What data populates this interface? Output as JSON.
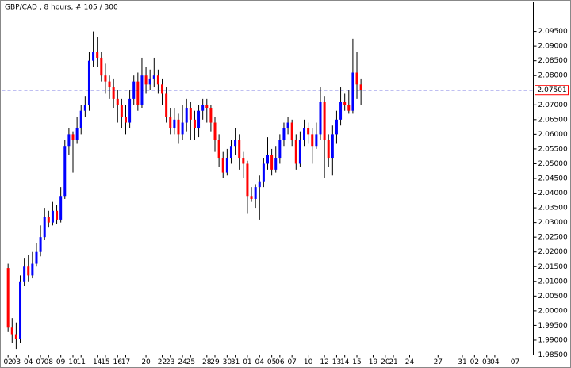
{
  "chart_data": {
    "type": "candlestick",
    "title": "GBP/CAD , 8 hours, # 105 / 300",
    "bull_color": "#0000ff",
    "bear_color": "#ff0000",
    "current_price": 2.07501,
    "current_price_color": "#0000cc",
    "xlim": [
      -1.5,
      129.5
    ],
    "xticks": [
      {
        "value": 0,
        "label": "02"
      },
      {
        "value": 2,
        "label": "03"
      },
      {
        "value": 5,
        "label": "04"
      },
      {
        "value": 8,
        "label": "07"
      },
      {
        "value": 10,
        "label": "08"
      },
      {
        "value": 13,
        "label": "09"
      },
      {
        "value": 16,
        "label": "10"
      },
      {
        "value": 18,
        "label": "11"
      },
      {
        "value": 22,
        "label": "14"
      },
      {
        "value": 24,
        "label": "15"
      },
      {
        "value": 27,
        "label": "16"
      },
      {
        "value": 29,
        "label": "17"
      },
      {
        "value": 34,
        "label": "20"
      },
      {
        "value": 38,
        "label": "22"
      },
      {
        "value": 40,
        "label": "23"
      },
      {
        "value": 43,
        "label": "24"
      },
      {
        "value": 45,
        "label": "25"
      },
      {
        "value": 49,
        "label": "28"
      },
      {
        "value": 51,
        "label": "29"
      },
      {
        "value": 54,
        "label": "30"
      },
      {
        "value": 56,
        "label": "31"
      },
      {
        "value": 59,
        "label": "01"
      },
      {
        "value": 62,
        "label": "04"
      },
      {
        "value": 65,
        "label": "05"
      },
      {
        "value": 67,
        "label": "06"
      },
      {
        "value": 70,
        "label": "07"
      },
      {
        "value": 74,
        "label": "10"
      },
      {
        "value": 78,
        "label": "12"
      },
      {
        "value": 81,
        "label": "13"
      },
      {
        "value": 83,
        "label": "14"
      },
      {
        "value": 86,
        "label": "15"
      },
      {
        "value": 90,
        "label": "19"
      },
      {
        "value": 93,
        "label": "20"
      },
      {
        "value": 95,
        "label": "21"
      },
      {
        "value": 99,
        "label": "24"
      },
      {
        "value": 106,
        "label": "27"
      },
      {
        "value": 112,
        "label": "31"
      },
      {
        "value": 115,
        "label": "02"
      },
      {
        "value": 118,
        "label": "03"
      },
      {
        "value": 120,
        "label": "04"
      },
      {
        "value": 125,
        "label": "07"
      }
    ],
    "ylim": [
      1.985,
      2.105
    ],
    "yticks": [
      {
        "value": 1.985,
        "label": "1.98500"
      },
      {
        "value": 1.99,
        "label": "1.99000"
      },
      {
        "value": 1.995,
        "label": "1.99500"
      },
      {
        "value": 2.0,
        "label": "2.00000"
      },
      {
        "value": 2.005,
        "label": "2.00500"
      },
      {
        "value": 2.01,
        "label": "2.01000"
      },
      {
        "value": 2.015,
        "label": "2.01500"
      },
      {
        "value": 2.02,
        "label": "2.02000"
      },
      {
        "value": 2.025,
        "label": "2.02500"
      },
      {
        "value": 2.03,
        "label": "2.03000"
      },
      {
        "value": 2.035,
        "label": "2.03500"
      },
      {
        "value": 2.04,
        "label": "2.04000"
      },
      {
        "value": 2.045,
        "label": "2.04500"
      },
      {
        "value": 2.05,
        "label": "2.05000"
      },
      {
        "value": 2.055,
        "label": "2.05500"
      },
      {
        "value": 2.06,
        "label": "2.06000"
      },
      {
        "value": 2.065,
        "label": "2.06500"
      },
      {
        "value": 2.07,
        "label": "2.07000"
      },
      {
        "value": 2.08,
        "label": "2.08000"
      },
      {
        "value": 2.085,
        "label": "2.08500"
      },
      {
        "value": 2.09,
        "label": "2.09000"
      },
      {
        "value": 2.095,
        "label": "2.09500"
      }
    ],
    "open": [
      2.0145,
      1.9945,
      1.992,
      1.9905,
      2.01,
      2.015,
      2.012,
      2.016,
      2.02,
      2.025,
      2.032,
      2.03,
      2.034,
      2.031,
      2.039,
      2.056,
      2.06,
      2.058,
      2.062,
      2.068,
      2.07,
      2.085,
      2.088,
      2.086,
      2.08,
      2.078,
      2.076,
      2.072,
      2.07,
      2.066,
      2.064,
      2.072,
      2.078,
      2.07,
      2.08,
      2.077,
      2.079,
      2.08,
      2.077,
      2.074,
      2.066,
      2.062,
      2.065,
      2.06,
      2.064,
      2.069,
      2.065,
      2.062,
      2.068,
      2.07,
      2.069,
      2.064,
      2.058,
      2.052,
      2.047,
      2.052,
      2.056,
      2.058,
      2.052,
      2.05,
      2.039,
      2.038,
      2.042,
      2.044,
      2.05,
      2.053,
      2.048,
      2.052,
      2.058,
      2.062,
      2.064,
      2.058,
      2.05,
      2.058,
      2.062,
      2.06,
      2.056,
      2.06,
      2.071,
      2.058,
      2.052,
      2.06,
      2.065,
      2.071,
      2.07,
      2.068,
      2.081,
      2.077
    ],
    "high": [
      2.016,
      1.9975,
      1.996,
      2.012,
      2.018,
      2.019,
      2.02,
      2.023,
      2.029,
      2.035,
      2.034,
      2.037,
      2.036,
      2.042,
      2.058,
      2.062,
      2.061,
      2.066,
      2.07,
      2.073,
      2.088,
      2.095,
      2.093,
      2.088,
      2.084,
      2.08,
      2.079,
      2.075,
      2.072,
      2.07,
      2.075,
      2.08,
      2.081,
      2.086,
      2.083,
      2.082,
      2.086,
      2.082,
      2.079,
      2.076,
      2.069,
      2.069,
      2.067,
      2.07,
      2.072,
      2.071,
      2.068,
      2.07,
      2.072,
      2.072,
      2.07,
      2.066,
      2.06,
      2.054,
      2.055,
      2.058,
      2.062,
      2.06,
      2.054,
      2.051,
      2.042,
      2.043,
      2.046,
      2.052,
      2.059,
      2.055,
      2.056,
      2.06,
      2.064,
      2.066,
      2.065,
      2.06,
      2.061,
      2.065,
      2.064,
      2.062,
      2.064,
      2.076,
      2.073,
      2.06,
      2.063,
      2.068,
      2.076,
      2.074,
      2.075,
      2.0925,
      2.088,
      2.079
    ],
    "low": [
      1.993,
      1.989,
      1.987,
      1.989,
      2.0085,
      2.01,
      2.011,
      2.015,
      2.0185,
      2.024,
      2.0285,
      2.029,
      2.0295,
      2.03,
      2.038,
      2.053,
      2.047,
      2.057,
      2.06,
      2.066,
      2.068,
      2.083,
      2.083,
      2.078,
      2.074,
      2.072,
      2.069,
      2.064,
      2.062,
      2.06,
      2.062,
      2.07,
      2.068,
      2.069,
      2.074,
      2.075,
      2.076,
      2.074,
      2.07,
      2.064,
      2.06,
      2.06,
      2.057,
      2.058,
      2.061,
      2.058,
      2.058,
      2.059,
      2.065,
      2.064,
      2.061,
      2.054,
      2.049,
      2.045,
      2.046,
      2.05,
      2.053,
      2.048,
      2.045,
      2.033,
      2.037,
      2.035,
      2.031,
      2.042,
      2.048,
      2.046,
      2.047,
      2.05,
      2.056,
      2.06,
      2.056,
      2.048,
      2.049,
      2.056,
      2.057,
      2.05,
      2.055,
      2.058,
      2.045,
      2.049,
      2.046,
      2.057,
      2.063,
      2.068,
      2.067,
      2.067,
      2.072,
      2.07
    ],
    "close": [
      1.9945,
      1.992,
      1.9905,
      2.01,
      2.015,
      2.012,
      2.016,
      2.02,
      2.025,
      2.032,
      2.03,
      2.034,
      2.031,
      2.039,
      2.056,
      2.06,
      2.058,
      2.062,
      2.068,
      2.07,
      2.085,
      2.088,
      2.086,
      2.08,
      2.078,
      2.076,
      2.072,
      2.07,
      2.066,
      2.064,
      2.072,
      2.078,
      2.07,
      2.08,
      2.077,
      2.079,
      2.08,
      2.077,
      2.074,
      2.066,
      2.062,
      2.065,
      2.06,
      2.064,
      2.069,
      2.065,
      2.062,
      2.068,
      2.07,
      2.069,
      2.064,
      2.058,
      2.052,
      2.047,
      2.052,
      2.056,
      2.058,
      2.052,
      2.05,
      2.039,
      2.038,
      2.042,
      2.044,
      2.05,
      2.053,
      2.048,
      2.052,
      2.058,
      2.062,
      2.064,
      2.058,
      2.05,
      2.058,
      2.062,
      2.06,
      2.056,
      2.06,
      2.071,
      2.058,
      2.052,
      2.06,
      2.065,
      2.071,
      2.07,
      2.068,
      2.081,
      2.077,
      2.075
    ]
  }
}
